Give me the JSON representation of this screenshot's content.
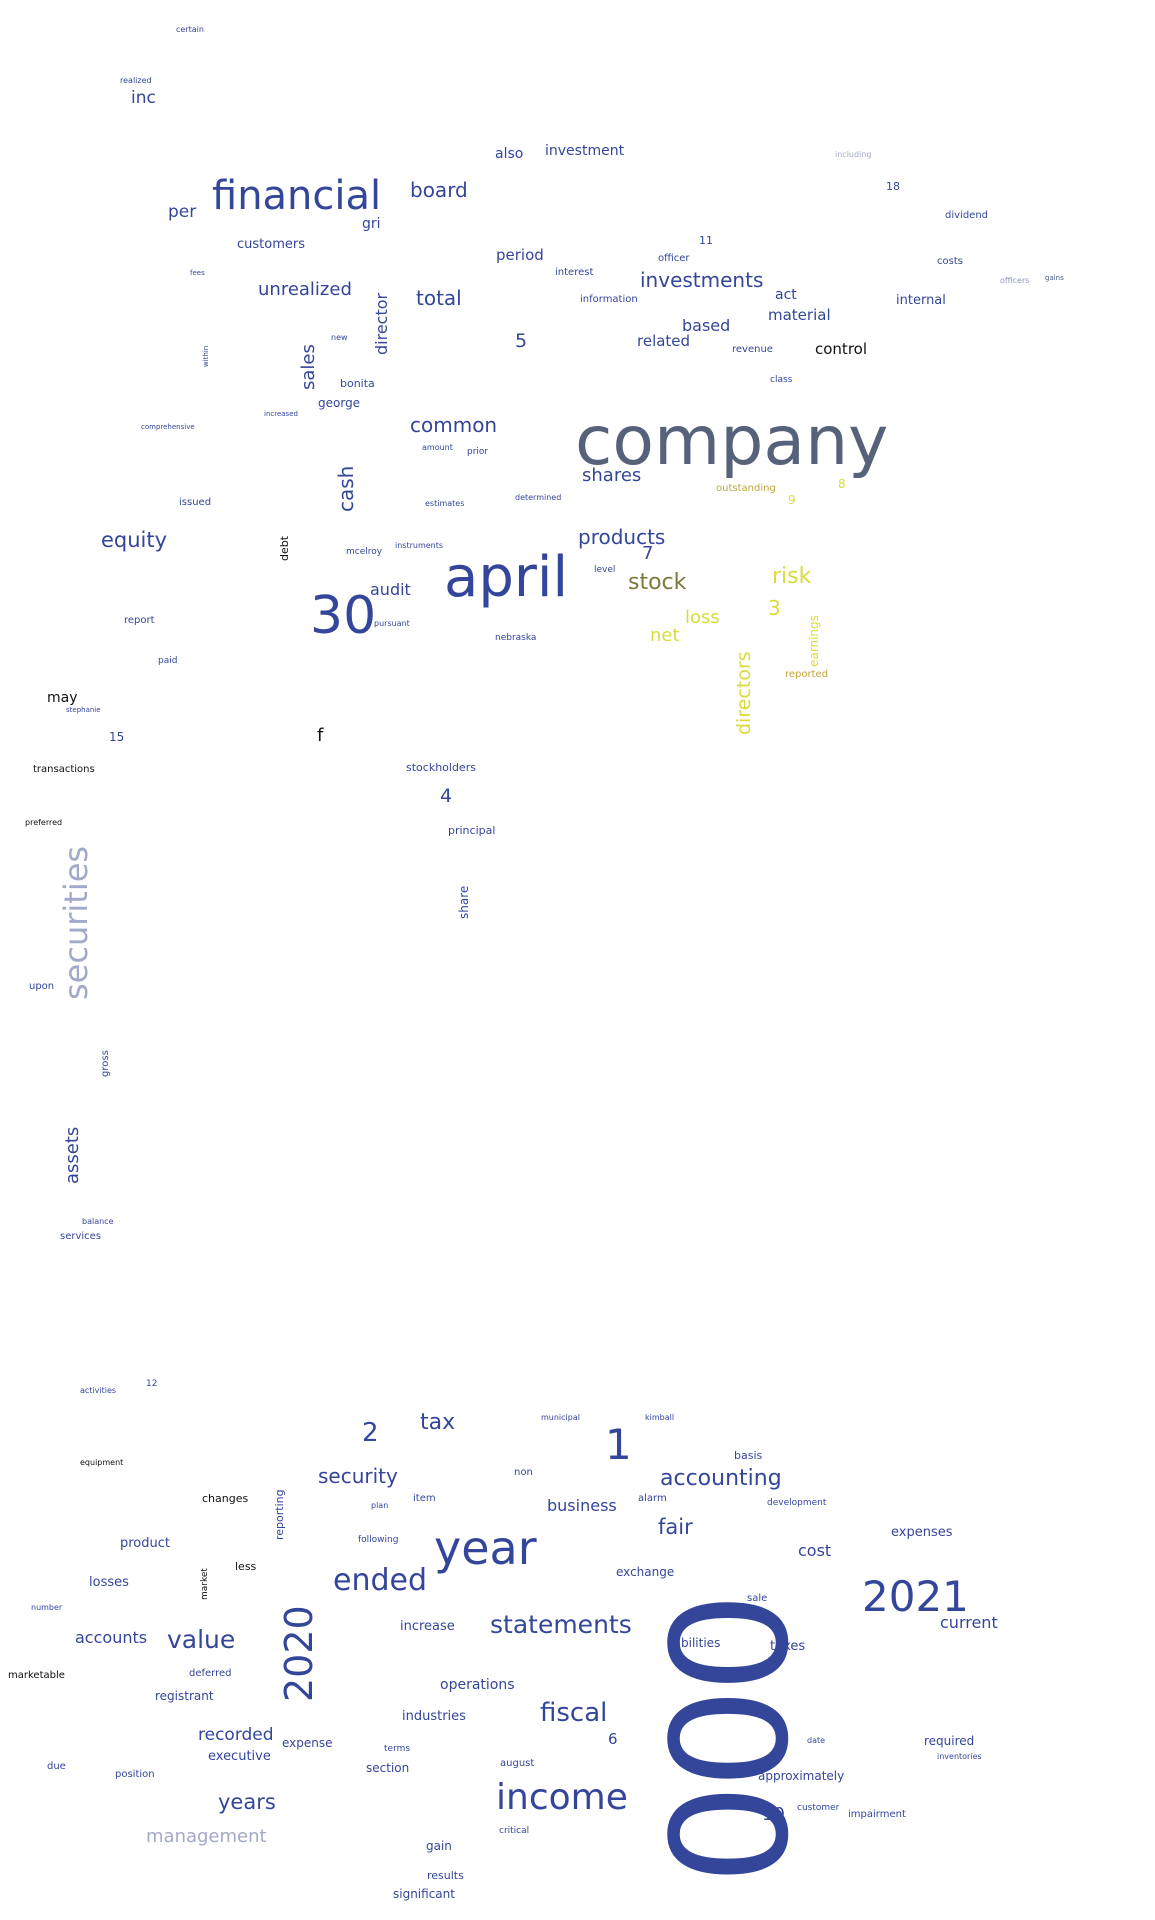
{
  "words": [
    {
      "t": "company",
      "c": "c3"
    },
    {
      "t": "000",
      "c": "c1"
    },
    {
      "t": "april",
      "c": "c1"
    },
    {
      "t": "financial",
      "c": "c1"
    },
    {
      "t": "30",
      "c": "c1"
    },
    {
      "t": "year",
      "c": "c1"
    },
    {
      "t": "2021",
      "c": "c1"
    },
    {
      "t": "income",
      "c": "c1"
    },
    {
      "t": "2020",
      "c": "c1"
    },
    {
      "t": "securities",
      "c": "c4"
    },
    {
      "t": "1",
      "c": "c1"
    },
    {
      "t": "ended",
      "c": "c1"
    },
    {
      "t": "statements",
      "c": "c1"
    },
    {
      "t": "fiscal",
      "c": "c1"
    },
    {
      "t": "value",
      "c": "c1"
    },
    {
      "t": "accounting",
      "c": "c1"
    },
    {
      "t": "stock",
      "c": "c6"
    },
    {
      "t": "risk",
      "c": "c5"
    },
    {
      "t": "products",
      "c": "c1"
    },
    {
      "t": "investments",
      "c": "c1"
    },
    {
      "t": "equity",
      "c": "c1"
    },
    {
      "t": "directors",
      "c": "c5"
    },
    {
      "t": "cash",
      "c": "c1"
    },
    {
      "t": "total",
      "c": "c1"
    },
    {
      "t": "common",
      "c": "c1"
    },
    {
      "t": "unrealized",
      "c": "c1"
    },
    {
      "t": "shares",
      "c": "c1"
    },
    {
      "t": "board",
      "c": "c1"
    },
    {
      "t": "years",
      "c": "c1"
    },
    {
      "t": "fair",
      "c": "c1"
    },
    {
      "t": "security",
      "c": "c1"
    },
    {
      "t": "tax",
      "c": "c1"
    },
    {
      "t": "management",
      "c": "c4"
    },
    {
      "t": "assets",
      "c": "c1"
    },
    {
      "t": "sales",
      "c": "c1"
    },
    {
      "t": "loss",
      "c": "c5"
    },
    {
      "t": "net",
      "c": "c5"
    },
    {
      "t": "audit",
      "c": "c1"
    },
    {
      "t": "recorded",
      "c": "c1"
    },
    {
      "t": "accounts",
      "c": "c1"
    },
    {
      "t": "current",
      "c": "c1"
    },
    {
      "t": "business",
      "c": "c1"
    },
    {
      "t": "director",
      "c": "c1"
    },
    {
      "t": "cost",
      "c": "c1"
    },
    {
      "t": "based",
      "c": "c1"
    },
    {
      "t": "related",
      "c": "c1"
    },
    {
      "t": "material",
      "c": "c1"
    },
    {
      "t": "control",
      "c": "c8"
    },
    {
      "t": "period",
      "c": "c1"
    },
    {
      "t": "investment",
      "c": "c1"
    },
    {
      "t": "customers",
      "c": "c1"
    },
    {
      "t": "per",
      "c": "c1"
    },
    {
      "t": "inc",
      "c": "c1"
    },
    {
      "t": "also",
      "c": "c1"
    },
    {
      "t": "gri",
      "c": "c1"
    },
    {
      "t": "internal",
      "c": "c1"
    },
    {
      "t": "dividend",
      "c": "c1"
    },
    {
      "t": "act",
      "c": "c1"
    },
    {
      "t": "5",
      "c": "c1"
    },
    {
      "t": "3",
      "c": "c5"
    },
    {
      "t": "7",
      "c": "c1"
    },
    {
      "t": "2",
      "c": "c1"
    },
    {
      "t": "4",
      "c": "c1"
    },
    {
      "t": "6",
      "c": "c1"
    },
    {
      "t": "10",
      "c": "c1"
    },
    {
      "t": "f",
      "c": "c8"
    },
    {
      "t": "earnings",
      "c": "c5"
    },
    {
      "t": "outstanding",
      "c": "c7"
    },
    {
      "t": "reported",
      "c": "c7"
    },
    {
      "t": "9",
      "c": "c5"
    },
    {
      "t": "8",
      "c": "c5"
    },
    {
      "t": "george",
      "c": "c1"
    },
    {
      "t": "bonita",
      "c": "c1"
    },
    {
      "t": "mcelroy",
      "c": "c1"
    },
    {
      "t": "nebraska",
      "c": "c1"
    },
    {
      "t": "stockholders",
      "c": "c1"
    },
    {
      "t": "principal",
      "c": "c1"
    },
    {
      "t": "share",
      "c": "c1"
    },
    {
      "t": "may",
      "c": "c8"
    },
    {
      "t": "transactions",
      "c": "c8"
    },
    {
      "t": "preferred",
      "c": "c8"
    },
    {
      "t": "15",
      "c": "c1"
    },
    {
      "t": "report",
      "c": "c1"
    },
    {
      "t": "paid",
      "c": "c1"
    },
    {
      "t": "issued",
      "c": "c1"
    },
    {
      "t": "debt",
      "c": "c8"
    },
    {
      "t": "upon",
      "c": "c1"
    },
    {
      "t": "gross",
      "c": "c1"
    },
    {
      "t": "services",
      "c": "c1"
    },
    {
      "t": "balance",
      "c": "c1"
    },
    {
      "t": "operations",
      "c": "c1"
    },
    {
      "t": "industries",
      "c": "c1"
    },
    {
      "t": "increase",
      "c": "c1"
    },
    {
      "t": "liabilities",
      "c": "c1"
    },
    {
      "t": "taxes",
      "c": "c1"
    },
    {
      "t": "expenses",
      "c": "c1"
    },
    {
      "t": "exchange",
      "c": "c1"
    },
    {
      "t": "approximately",
      "c": "c1"
    },
    {
      "t": "required",
      "c": "c1"
    },
    {
      "t": "executive",
      "c": "c1"
    },
    {
      "t": "expense",
      "c": "c1"
    },
    {
      "t": "section",
      "c": "c1"
    },
    {
      "t": "gain",
      "c": "c1"
    },
    {
      "t": "results",
      "c": "c1"
    },
    {
      "t": "significant",
      "c": "c1"
    },
    {
      "t": "registrant",
      "c": "c1"
    },
    {
      "t": "deferred",
      "c": "c1"
    },
    {
      "t": "product",
      "c": "c1"
    },
    {
      "t": "losses",
      "c": "c1"
    },
    {
      "t": "changes",
      "c": "c8"
    },
    {
      "t": "less",
      "c": "c8"
    },
    {
      "t": "marketable",
      "c": "c8"
    },
    {
      "t": "reporting",
      "c": "c1"
    },
    {
      "t": "market",
      "c": "c8"
    },
    {
      "t": "basis",
      "c": "c1"
    },
    {
      "t": "municipal",
      "c": "c1"
    },
    {
      "t": "kimball",
      "c": "c1"
    },
    {
      "t": "item",
      "c": "c1"
    },
    {
      "t": "alarm",
      "c": "c1"
    },
    {
      "t": "development",
      "c": "c1"
    },
    {
      "t": "august",
      "c": "c1"
    },
    {
      "t": "position",
      "c": "c1"
    },
    {
      "t": "due",
      "c": "c1"
    },
    {
      "t": "impairment",
      "c": "c1"
    },
    {
      "t": "customer",
      "c": "c1"
    },
    {
      "t": "non",
      "c": "c1"
    },
    {
      "t": "following",
      "c": "c1"
    },
    {
      "t": "sale",
      "c": "c1"
    },
    {
      "t": "critical",
      "c": "c1"
    },
    {
      "t": "inventories",
      "c": "c1"
    },
    {
      "t": "terms",
      "c": "c1"
    },
    {
      "t": "date",
      "c": "c1"
    },
    {
      "t": "number",
      "c": "c1"
    },
    {
      "t": "activities",
      "c": "c1"
    },
    {
      "t": "equipment",
      "c": "c8"
    },
    {
      "t": "12",
      "c": "c1"
    },
    {
      "t": "11",
      "c": "c1"
    },
    {
      "t": "18",
      "c": "c1"
    },
    {
      "t": "costs",
      "c": "c1"
    },
    {
      "t": "officer",
      "c": "c1"
    },
    {
      "t": "interest",
      "c": "c1"
    },
    {
      "t": "information",
      "c": "c1"
    },
    {
      "t": "revenue",
      "c": "c1"
    },
    {
      "t": "class",
      "c": "c1"
    },
    {
      "t": "prior",
      "c": "c1"
    },
    {
      "t": "amount",
      "c": "c1"
    },
    {
      "t": "estimates",
      "c": "c1"
    },
    {
      "t": "determined",
      "c": "c1"
    },
    {
      "t": "instruments",
      "c": "c1"
    },
    {
      "t": "level",
      "c": "c1"
    },
    {
      "t": "pursuant",
      "c": "c1"
    },
    {
      "t": "realized",
      "c": "c1"
    },
    {
      "t": "certain",
      "c": "c1"
    },
    {
      "t": "comprehensive",
      "c": "c1"
    },
    {
      "t": "new",
      "c": "c1"
    },
    {
      "t": "increased",
      "c": "c1"
    },
    {
      "t": "stephanie",
      "c": "c1"
    },
    {
      "t": "including",
      "c": "c4"
    },
    {
      "t": "officers",
      "c": "c9"
    },
    {
      "t": "gains",
      "c": "c2"
    },
    {
      "t": "plan",
      "c": "c1"
    },
    {
      "t": "fees",
      "c": "c1"
    },
    {
      "t": "within",
      "c": "c1"
    }
  ]
}
